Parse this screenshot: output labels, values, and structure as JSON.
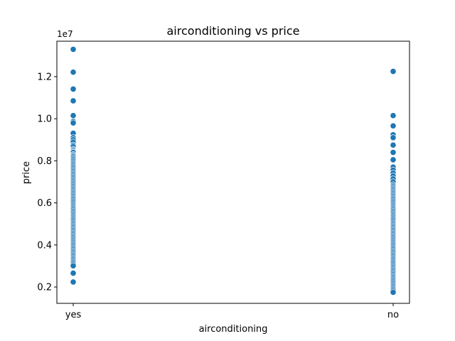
{
  "chart_data": {
    "type": "scatter",
    "title": "airconditioning vs price",
    "xlabel": "airconditioning",
    "ylabel": "price",
    "offset_label": "1e7",
    "categories": [
      "yes",
      "no"
    ],
    "y_ticks": [
      0.2,
      0.4,
      0.6,
      0.8,
      1.0,
      1.2
    ],
    "y_tick_labels": [
      "0.2",
      "0.4",
      "0.6",
      "0.8",
      "1.0",
      "1.2"
    ],
    "ylim": [
      0.1225,
      1.3685
    ],
    "grid": false,
    "legend": "none",
    "marker_color": "#1f77b4",
    "series": [
      {
        "category": "yes",
        "values": [
          13.3,
          12.215,
          11.41,
          10.85,
          10.15,
          9.87,
          9.8,
          9.31,
          9.1,
          9.0,
          8.89,
          8.75,
          8.68,
          8.55,
          8.5,
          8.44,
          8.4,
          8.295,
          8.25,
          8.19,
          8.12,
          8.05,
          7.98,
          7.91,
          7.84,
          7.77,
          7.7,
          7.63,
          7.56,
          7.49,
          7.42,
          7.35,
          7.28,
          7.21,
          7.14,
          7.07,
          7.0,
          6.93,
          6.86,
          6.79,
          6.72,
          6.65,
          6.58,
          6.51,
          6.44,
          6.37,
          6.3,
          6.23,
          6.16,
          6.09,
          6.02,
          5.95,
          5.88,
          5.81,
          5.74,
          5.67,
          5.6,
          5.53,
          5.46,
          5.39,
          5.32,
          5.25,
          5.18,
          5.11,
          5.04,
          4.97,
          4.9,
          4.83,
          4.76,
          4.69,
          4.62,
          4.55,
          4.48,
          4.41,
          4.34,
          4.27,
          4.2,
          4.13,
          4.06,
          3.99,
          3.92,
          3.85,
          3.78,
          3.71,
          3.64,
          3.57,
          3.5,
          3.43,
          3.36,
          3.29,
          3.22,
          3.15,
          3.08,
          3.01,
          2.66,
          2.24
        ]
      },
      {
        "category": "no",
        "values": [
          12.25,
          10.15,
          9.66,
          9.24,
          9.1,
          8.75,
          8.4,
          8.05,
          7.7,
          7.56,
          7.42,
          7.28,
          7.14,
          7.0,
          6.86,
          6.79,
          6.72,
          6.65,
          6.58,
          6.51,
          6.44,
          6.37,
          6.3,
          6.23,
          6.16,
          6.09,
          6.02,
          5.95,
          5.88,
          5.81,
          5.74,
          5.67,
          5.6,
          5.53,
          5.46,
          5.39,
          5.32,
          5.25,
          5.18,
          5.11,
          5.04,
          4.97,
          4.9,
          4.83,
          4.76,
          4.69,
          4.62,
          4.55,
          4.48,
          4.41,
          4.34,
          4.27,
          4.2,
          4.13,
          4.06,
          3.99,
          3.92,
          3.85,
          3.78,
          3.71,
          3.64,
          3.57,
          3.5,
          3.43,
          3.36,
          3.29,
          3.22,
          3.15,
          3.08,
          3.01,
          2.94,
          2.87,
          2.8,
          2.73,
          2.66,
          2.59,
          2.52,
          2.45,
          2.38,
          2.31,
          2.24,
          2.17,
          2.1,
          2.03,
          1.96,
          1.89,
          1.82,
          1.75
        ]
      }
    ]
  }
}
